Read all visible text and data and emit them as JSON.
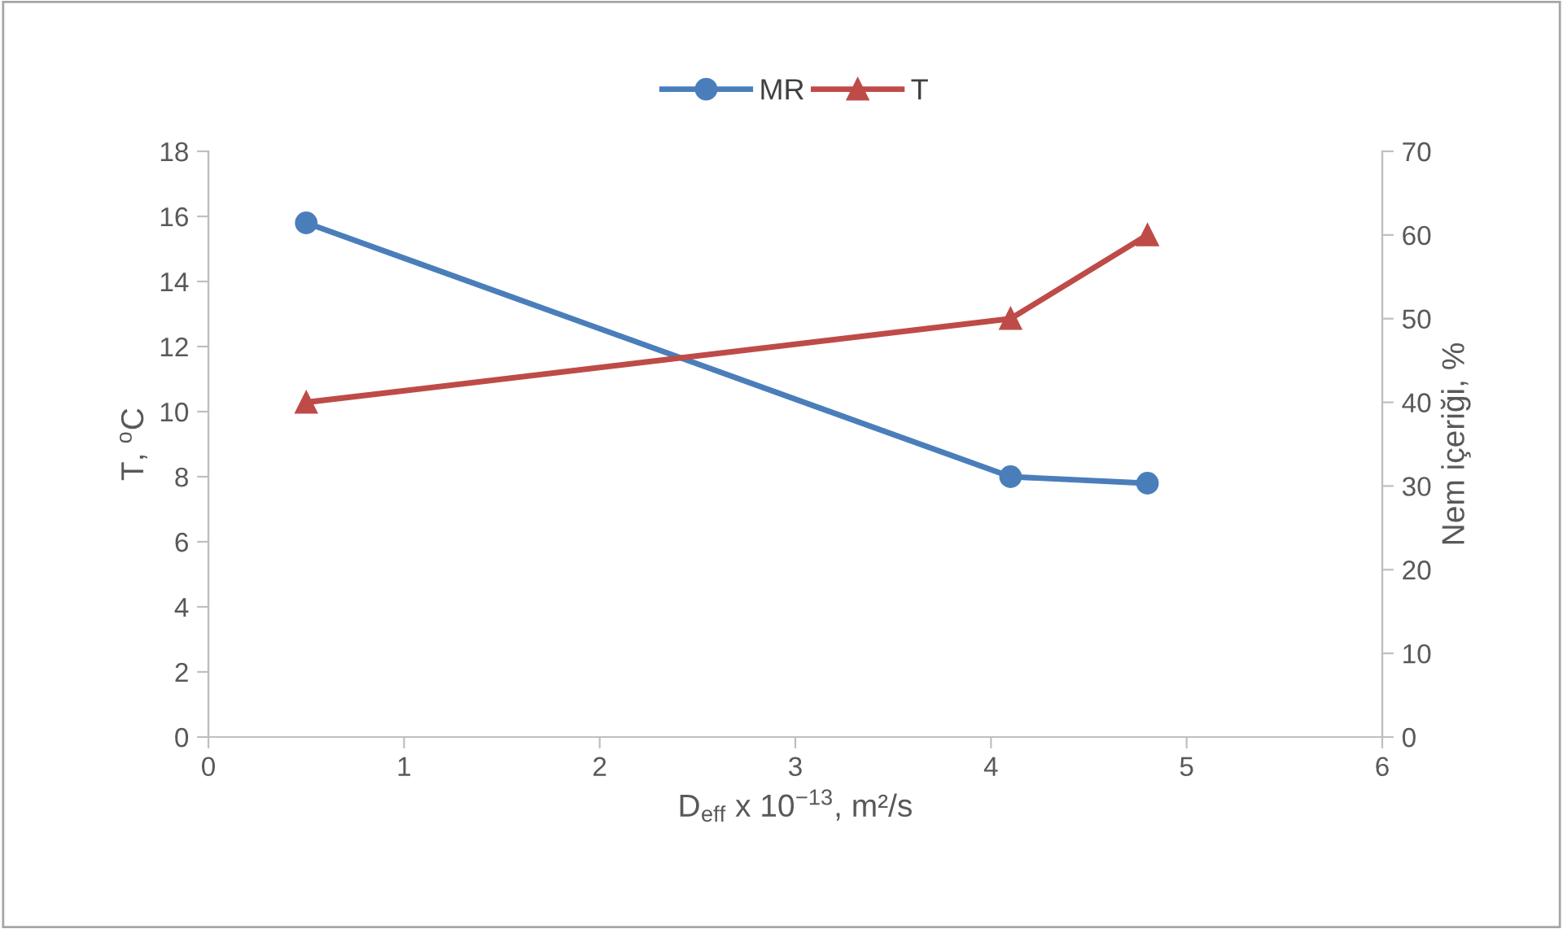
{
  "chart_data": {
    "type": "line",
    "xlabel": "D$_{eff}$ x 10$^{−13}$, m²/s",
    "ylabel": "T, $^{o}$C",
    "y2label": "Nem içeriği, %",
    "series": [
      {
        "name": "MR",
        "color": "#4a7ebb",
        "x": [
          0.5,
          4.1,
          4.8
        ],
        "values": [
          15.8,
          8.0,
          7.8
        ],
        "marker": "circle"
      },
      {
        "name": "T",
        "color": "#be4b48",
        "x": [
          0.5,
          4.1,
          4.8
        ],
        "values": [
          40,
          50,
          60
        ],
        "axis": "y2",
        "marker": "triangle"
      }
    ],
    "xlim": [
      0,
      6
    ],
    "xticks": [
      0,
      1,
      2,
      3,
      4,
      5,
      6
    ],
    "ylim": [
      0,
      18
    ],
    "yticks": [
      0,
      2,
      4,
      6,
      8,
      10,
      12,
      14,
      16,
      18
    ],
    "y2lim": [
      0,
      70
    ],
    "y2ticks": [
      0,
      10,
      20,
      30,
      40,
      50,
      60,
      70
    ],
    "legend": "top",
    "grid": false,
    "line_style": "solid"
  }
}
